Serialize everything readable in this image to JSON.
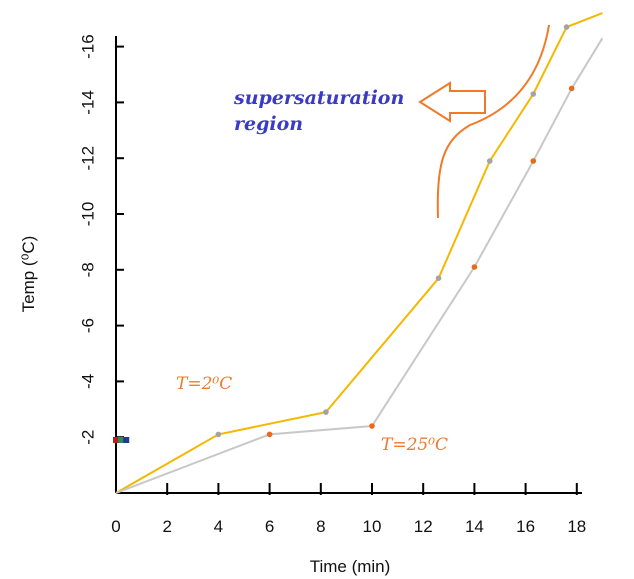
{
  "chart_data": {
    "type": "line",
    "title": "",
    "xlabel": "Time (min)",
    "ylabel": "Temp (⁰C)",
    "x_ticks": [
      "0",
      "2",
      "4",
      "6",
      "8",
      "10",
      "12",
      "14",
      "16",
      "18"
    ],
    "y_ticks": [
      "-2",
      "-4",
      "-6",
      "-8",
      "-10",
      "-12",
      "-14",
      "-16"
    ],
    "xlim": [
      0,
      18
    ],
    "ylim": [
      0,
      -16
    ],
    "grid": false,
    "legend": "none",
    "series": [
      {
        "color": "#f5b800",
        "marker_color": "#a3a3a3",
        "x": [
          0,
          4,
          8.2,
          12.6,
          14.6,
          16.3,
          17.6,
          19.0
        ],
        "y": [
          0,
          -2.1,
          -2.9,
          -7.7,
          -11.9,
          -14.3,
          -16.7,
          -17.2
        ]
      },
      {
        "color": "#c8c8c8",
        "marker_color": "#e96a1a",
        "x": [
          0,
          6,
          10,
          14,
          16.3,
          17.8,
          19.0
        ],
        "y": [
          0,
          -2.1,
          -2.4,
          -8.1,
          -11.9,
          -14.5,
          -16.3
        ]
      }
    ],
    "start_markers": {
      "x": [
        0,
        0.2,
        0.4
      ],
      "y": [
        -1.9,
        -1.9,
        -1.9
      ],
      "colors": [
        "#b22222",
        "#2e8b57",
        "#1f3a93"
      ]
    },
    "annotations": {
      "supersaturation": "supersaturation\nregion",
      "t_low": "T=2⁰C",
      "t_high": "T=25⁰C"
    },
    "colors": {
      "axis": "#000000",
      "annotation_blue": "#3a3ac8",
      "annotation_orange": "#f07a2a",
      "arrow": "#f07a2a"
    }
  }
}
